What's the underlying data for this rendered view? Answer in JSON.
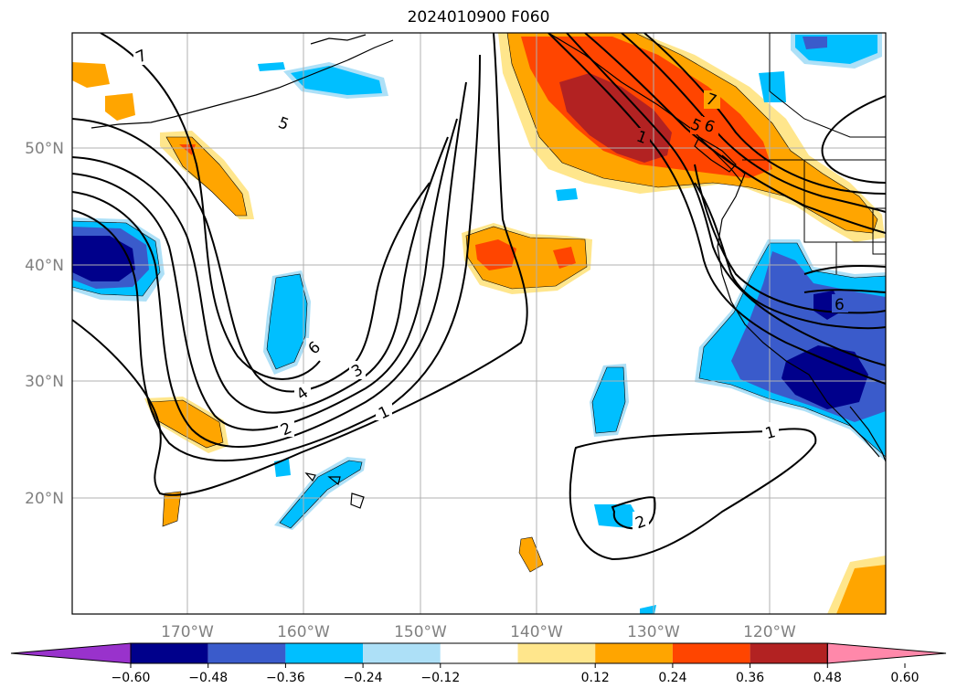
{
  "title": "2024010900 F060",
  "map": {
    "lon_labels": [
      "170°W",
      "160°W",
      "150°W",
      "140°W",
      "130°W",
      "120°W"
    ],
    "lat_labels": [
      "50°N",
      "40°N",
      "30°N",
      "20°N"
    ],
    "contour_labels": [
      "7",
      "5",
      "6",
      "3",
      "4",
      "2",
      "1",
      "7",
      "6",
      "5",
      "1",
      "6",
      "1",
      "2"
    ]
  },
  "colorbar": {
    "ticks": [
      "−0.60",
      "−0.48",
      "−0.36",
      "−0.24",
      "−0.12",
      "0.12",
      "0.24",
      "0.36",
      "0.48",
      "0.60"
    ],
    "colors": [
      "#9932CC",
      "#00008B",
      "#3A5BCB",
      "#00BFFF",
      "#ADE0F7",
      "#FFFFFF",
      "#FFE68C",
      "#FFA500",
      "#FF4500",
      "#B22222",
      "#FF88AA"
    ]
  }
}
